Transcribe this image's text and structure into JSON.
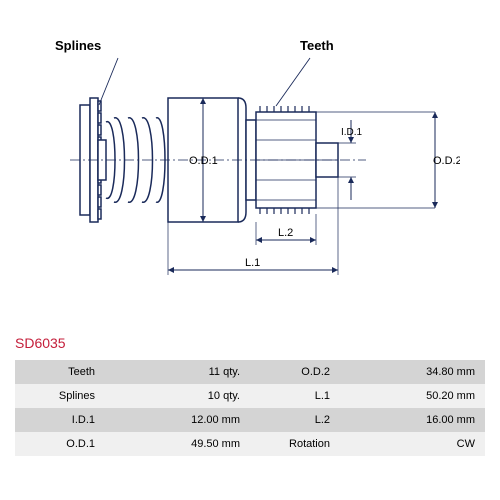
{
  "partCode": "SD6035",
  "partCodeColor": "#c41e3a",
  "labels": {
    "splines": "Splines",
    "teeth": "Teeth",
    "od1": "O.D.1",
    "od2": "O.D.2",
    "id1": "I.D.1",
    "l1": "L.1",
    "l2": "L.2"
  },
  "specs": [
    {
      "k1": "Teeth",
      "v1": "11 qty.",
      "k2": "O.D.2",
      "v2": "34.80 mm"
    },
    {
      "k1": "Splines",
      "v1": "10 qty.",
      "k2": "L.1",
      "v2": "50.20 mm"
    },
    {
      "k1": "I.D.1",
      "v1": "12.00 mm",
      "k2": "L.2",
      "v2": "16.00 mm"
    },
    {
      "k1": "O.D.1",
      "v1": "49.50 mm",
      "k2": "Rotation",
      "v2": "CW"
    }
  ],
  "diagram": {
    "strokeColor": "#1a2a5a",
    "strokeWidth": 1.5,
    "centerY": 130
  }
}
